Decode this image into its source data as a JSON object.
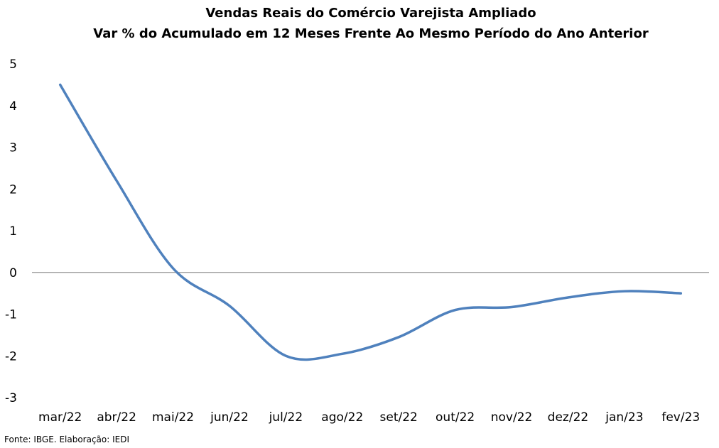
{
  "chart_data": {
    "type": "line",
    "title": "Vendas Reais do Comércio Varejista Ampliado",
    "subtitle": "Var % do Acumulado em 12 Meses Frente Ao Mesmo Período do Ano Anterior",
    "xlabel": "",
    "ylabel": "",
    "categories": [
      "mar/22",
      "abr/22",
      "mai/22",
      "jun/22",
      "jul/22",
      "ago/22",
      "set/22",
      "out/22",
      "nov/22",
      "dez/22",
      "jan/23",
      "fev/23"
    ],
    "series": [
      {
        "values": [
          4.5,
          2.2,
          0.1,
          -0.8,
          -2.0,
          -1.95,
          -1.55,
          -0.9,
          -0.83,
          -0.6,
          -0.45,
          -0.5
        ],
        "color": "#4F81BD"
      }
    ],
    "ylim": [
      -3,
      5
    ],
    "yticks": [
      "5",
      "4",
      "3",
      "2",
      "1",
      "0",
      "-1",
      "-2",
      "-3"
    ],
    "grid": false,
    "legend": "none"
  },
  "footer": {
    "source": "Fonte: IBGE. Elaboração: IEDI"
  }
}
